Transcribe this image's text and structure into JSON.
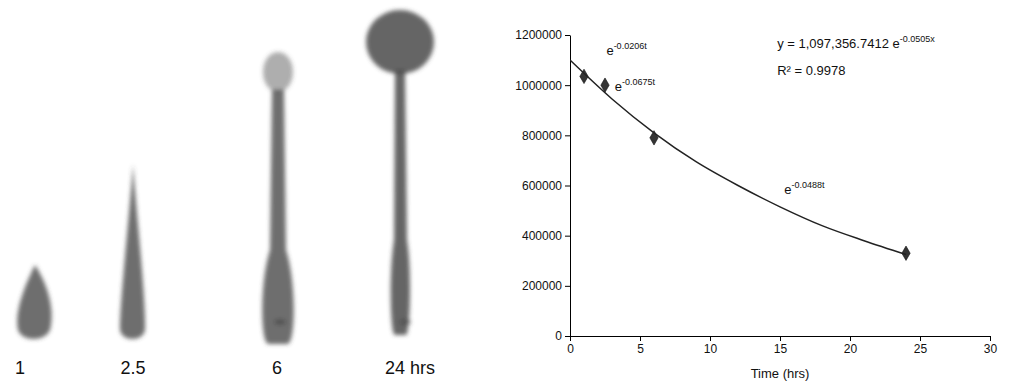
{
  "image_panel": {
    "lane_labels": [
      "1",
      "2.5",
      "6",
      "24 hrs"
    ]
  },
  "chart_data": {
    "type": "scatter",
    "x_label": "Time (hrs)",
    "xlim": [
      0,
      30
    ],
    "xticks": [
      0,
      5,
      10,
      15,
      20,
      25,
      30
    ],
    "ylim": [
      0,
      1200000
    ],
    "yticks": [
      0,
      200000,
      400000,
      600000,
      800000,
      1000000,
      1200000
    ],
    "grid": false,
    "series": [
      {
        "type": "scatter",
        "marker": "diamond",
        "color": "#333333",
        "x": [
          1,
          2.5,
          6,
          24
        ],
        "values": [
          1035000,
          1000000,
          790000,
          330000
        ]
      },
      {
        "type": "line",
        "line_style": "solid",
        "color": "#222222",
        "x": [
          0,
          3,
          6,
          9,
          12,
          15,
          18,
          21,
          24
        ],
        "values": [
          1100000,
          945000,
          810000,
          695000,
          600000,
          515000,
          440000,
          380000,
          325000
        ]
      }
    ],
    "annotations": [
      {
        "text": "e",
        "superscript": "-0.0206t",
        "x": 2.6,
        "y": 1120000
      },
      {
        "text": "e",
        "superscript": "-0.0675t",
        "x": 3.2,
        "y": 975000
      },
      {
        "text": "e",
        "superscript": "-0.0488t",
        "x": 15.3,
        "y": 565000
      },
      {
        "text": "y = 1,097,356.7412 e",
        "superscript": "-0.0505x",
        "x": 14.8,
        "y": 1150000
      },
      {
        "text": "R² = 0.9978",
        "x": 14.8,
        "y": 1040000
      }
    ]
  }
}
